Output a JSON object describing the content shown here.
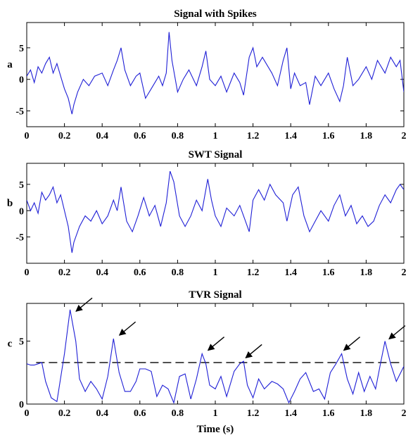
{
  "colors": {
    "signal": "#1f1fd6",
    "axis": "#000000",
    "threshold": "#000000",
    "arrow": "#000000"
  },
  "chart_data": [
    {
      "type": "line",
      "title": "Signal with Spikes",
      "ylabel": "a",
      "xlabel": "",
      "xlim": [
        0,
        2
      ],
      "ylim": [
        -7.5,
        9
      ],
      "xticks": [
        "0",
        "0.2",
        "0.4",
        "0.6",
        "0.8",
        "1",
        "1.2",
        "1.4",
        "1.6",
        "1.8",
        "2"
      ],
      "yticks": [
        {
          "v": 5,
          "label": "5"
        },
        {
          "v": 0,
          "label": "0"
        },
        {
          "v": -5,
          "label": "-5"
        }
      ],
      "series": [
        {
          "x": [
            0,
            0.02,
            0.04,
            0.06,
            0.08,
            0.1,
            0.12,
            0.14,
            0.16,
            0.18,
            0.2,
            0.22,
            0.24,
            0.25,
            0.27,
            0.3,
            0.33,
            0.36,
            0.4,
            0.43,
            0.46,
            0.48,
            0.5,
            0.52,
            0.55,
            0.58,
            0.6,
            0.63,
            0.66,
            0.7,
            0.72,
            0.74,
            0.755,
            0.77,
            0.8,
            0.83,
            0.86,
            0.9,
            0.93,
            0.95,
            0.97,
            1.0,
            1.03,
            1.06,
            1.1,
            1.13,
            1.15,
            1.18,
            1.2,
            1.22,
            1.25,
            1.28,
            1.3,
            1.33,
            1.36,
            1.38,
            1.4,
            1.42,
            1.45,
            1.48,
            1.5,
            1.53,
            1.56,
            1.6,
            1.63,
            1.66,
            1.68,
            1.7,
            1.73,
            1.76,
            1.8,
            1.83,
            1.86,
            1.9,
            1.93,
            1.96,
            1.98,
            2.0
          ],
          "y": [
            0.5,
            1.5,
            -0.5,
            2,
            1,
            2.5,
            3.5,
            1,
            2.5,
            0.5,
            -1.5,
            -3,
            -5.5,
            -4,
            -2,
            0,
            -1,
            0.5,
            1,
            -1,
            1.5,
            3,
            5,
            1.5,
            -1,
            0.5,
            1,
            -3,
            -1.5,
            0.5,
            -1,
            1,
            7.5,
            3,
            -2,
            0,
            1.5,
            -1,
            2,
            4.5,
            0,
            -1,
            0.5,
            -2,
            1,
            -0.5,
            -2.5,
            3.5,
            5,
            2,
            3.5,
            2,
            1,
            -1,
            3,
            5,
            -1.5,
            1,
            -1,
            -0.5,
            -4,
            0.5,
            -1,
            1,
            -1.5,
            -3.5,
            -1,
            3.5,
            -1,
            0,
            2,
            0,
            3,
            1,
            3.5,
            2,
            3,
            -2
          ]
        }
      ]
    },
    {
      "type": "line",
      "title": "SWT Signal",
      "ylabel": "b",
      "xlabel": "",
      "xlim": [
        0,
        2
      ],
      "ylim": [
        -10,
        9
      ],
      "xticks": [
        "0",
        "0.2",
        "0.4",
        "0.6",
        "0.8",
        "1",
        "1.2",
        "1.4",
        "1.6",
        "1.8",
        "2"
      ],
      "yticks": [
        {
          "v": 5,
          "label": "5"
        },
        {
          "v": 0,
          "label": "0"
        },
        {
          "v": -5,
          "label": "-5"
        }
      ],
      "series": [
        {
          "x": [
            0,
            0.02,
            0.04,
            0.06,
            0.08,
            0.1,
            0.12,
            0.14,
            0.16,
            0.18,
            0.2,
            0.22,
            0.24,
            0.25,
            0.28,
            0.31,
            0.34,
            0.37,
            0.4,
            0.43,
            0.46,
            0.48,
            0.5,
            0.53,
            0.56,
            0.59,
            0.62,
            0.65,
            0.68,
            0.71,
            0.74,
            0.76,
            0.78,
            0.81,
            0.84,
            0.87,
            0.9,
            0.93,
            0.96,
            0.98,
            1.0,
            1.03,
            1.06,
            1.1,
            1.13,
            1.16,
            1.18,
            1.2,
            1.23,
            1.26,
            1.29,
            1.32,
            1.36,
            1.38,
            1.41,
            1.44,
            1.47,
            1.5,
            1.53,
            1.56,
            1.6,
            1.63,
            1.66,
            1.69,
            1.72,
            1.75,
            1.78,
            1.81,
            1.84,
            1.87,
            1.9,
            1.93,
            1.96,
            1.98,
            2.0
          ],
          "y": [
            2,
            0,
            1.5,
            -0.5,
            3.5,
            2,
            3,
            4.5,
            1.5,
            3,
            0,
            -3,
            -8,
            -6,
            -3,
            -1,
            -2,
            0,
            -2.5,
            -1,
            2,
            0,
            4.5,
            -2,
            -4,
            -1,
            2.5,
            -1,
            1,
            -3,
            1.5,
            7.5,
            5.5,
            -1,
            -3,
            -1,
            2,
            0,
            6,
            2,
            -1,
            -3,
            0.5,
            -1,
            1,
            -2,
            -4,
            2,
            4,
            2,
            5,
            3,
            1.5,
            -2,
            3,
            4.5,
            -1,
            -4,
            -2,
            0,
            -2,
            1,
            3,
            -1,
            1,
            -2.5,
            -1,
            -3,
            -2,
            1,
            3,
            1.5,
            4,
            5,
            4
          ]
        }
      ]
    },
    {
      "type": "line",
      "title": "TVR  Signal",
      "ylabel": "c",
      "xlabel": "Time (s)",
      "xlim": [
        0,
        2
      ],
      "ylim": [
        0,
        8
      ],
      "xticks": [
        "0",
        "0.2",
        "0.4",
        "0.6",
        "0.8",
        "1",
        "1.2",
        "1.4",
        "1.6",
        "1.8",
        "2"
      ],
      "yticks": [
        {
          "v": 5,
          "label": "5"
        },
        {
          "v": 0,
          "label": "0"
        }
      ],
      "threshold": 3.3,
      "series": [
        {
          "x": [
            0,
            0.02,
            0.04,
            0.06,
            0.08,
            0.1,
            0.13,
            0.16,
            0.2,
            0.23,
            0.26,
            0.28,
            0.31,
            0.34,
            0.37,
            0.4,
            0.43,
            0.46,
            0.49,
            0.52,
            0.55,
            0.58,
            0.6,
            0.63,
            0.66,
            0.69,
            0.72,
            0.75,
            0.78,
            0.81,
            0.84,
            0.87,
            0.9,
            0.93,
            0.95,
            0.97,
            1.0,
            1.03,
            1.06,
            1.1,
            1.13,
            1.15,
            1.17,
            1.2,
            1.23,
            1.26,
            1.3,
            1.33,
            1.36,
            1.39,
            1.42,
            1.45,
            1.48,
            1.52,
            1.55,
            1.58,
            1.61,
            1.64,
            1.67,
            1.7,
            1.73,
            1.76,
            1.79,
            1.82,
            1.85,
            1.88,
            1.9,
            1.93,
            1.96,
            2.0
          ],
          "y": [
            3.2,
            3.1,
            3.1,
            3.2,
            3.3,
            1.8,
            0.5,
            0.2,
            4,
            7.5,
            5,
            2,
            1,
            1.8,
            1.2,
            0.4,
            2.2,
            5.2,
            2.5,
            1,
            1,
            1.8,
            2.8,
            2.8,
            2.6,
            0.6,
            1.5,
            1.2,
            0.1,
            2.2,
            2.4,
            0.4,
            2,
            4,
            3.2,
            1.5,
            1.2,
            2.2,
            0.6,
            2.6,
            3.2,
            3.4,
            1.5,
            0.5,
            2,
            1.2,
            1.8,
            1.6,
            1.2,
            0.1,
            1,
            2,
            2.5,
            1,
            1.2,
            0.4,
            2.5,
            3.2,
            4,
            2,
            0.8,
            2.5,
            1,
            2.2,
            1.2,
            3.5,
            5,
            3.2,
            1.8,
            3
          ]
        }
      ],
      "annotations": [
        {
          "type": "arrow",
          "x": 0.25,
          "y": 7.2
        },
        {
          "type": "arrow",
          "x": 0.48,
          "y": 5.3
        },
        {
          "type": "arrow",
          "x": 0.95,
          "y": 4.1
        },
        {
          "type": "arrow",
          "x": 1.15,
          "y": 3.5
        },
        {
          "type": "arrow",
          "x": 1.67,
          "y": 4.1
        },
        {
          "type": "arrow",
          "x": 1.91,
          "y": 5.0
        }
      ]
    }
  ]
}
